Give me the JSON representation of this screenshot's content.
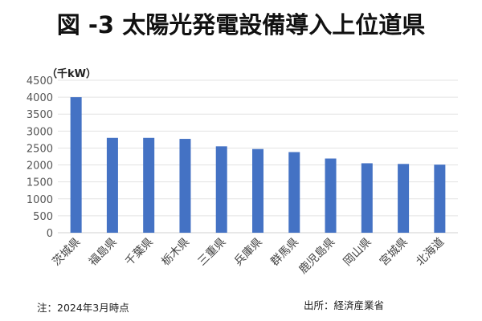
{
  "chart_data": {
    "type": "bar",
    "title": "図 -3 太陽光発電設備導入上位道県",
    "ylabel": "（千kW）",
    "xlabel": "",
    "ylim": [
      0,
      4500
    ],
    "yticks": [
      0,
      500,
      1000,
      1500,
      2000,
      2500,
      3000,
      3500,
      4000,
      4500
    ],
    "grid": true,
    "categories": [
      "茨城県",
      "福島県",
      "千葉県",
      "栃木県",
      "三重県",
      "兵庫県",
      "群馬県",
      "鹿児島県",
      "岡山県",
      "宮城県",
      "北海道"
    ],
    "values": [
      4000,
      2800,
      2800,
      2770,
      2550,
      2470,
      2380,
      2190,
      2050,
      2030,
      2010
    ],
    "bar_color": "#4472C4",
    "note": "注：2024年3月時点",
    "source": "出所：経済産業省"
  }
}
